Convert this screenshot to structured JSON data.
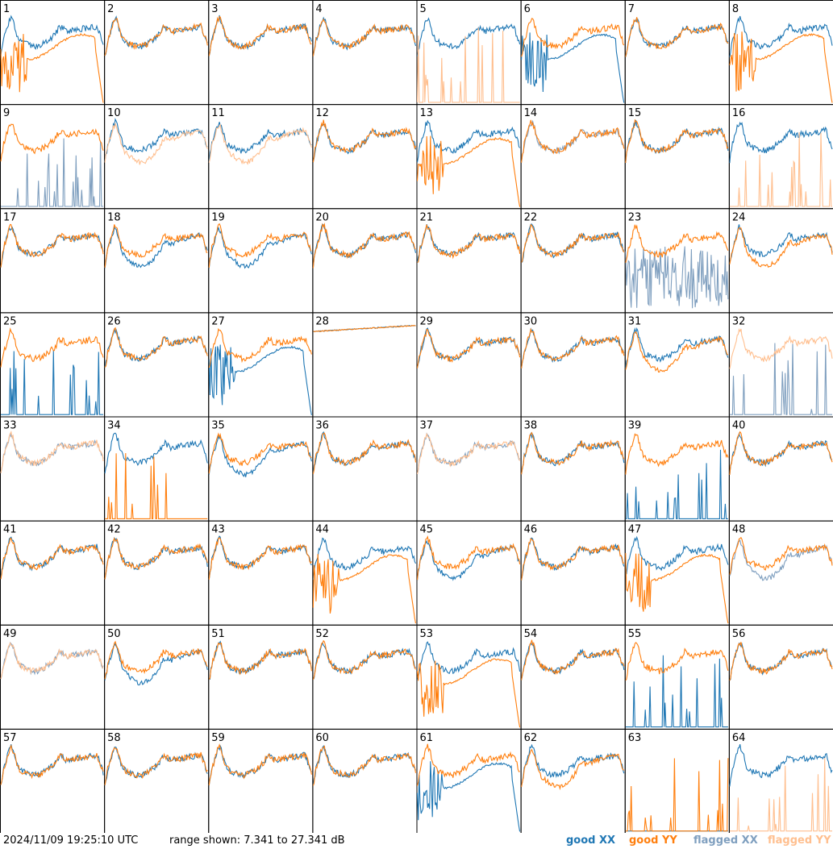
{
  "footer": {
    "timestamp": "2024/11/09 19:25:10 UTC",
    "range_text": "range shown: 7.341 to 27.341 dB",
    "legend": {
      "good_xx": "good XX",
      "good_yy": "good YY",
      "flagged_xx": "flagged XX",
      "flagged_yy": "flagged YY"
    }
  },
  "colors": {
    "good_xx": "#1f77b4",
    "good_yy": "#ff7f0e",
    "flagged_xx": "#7f9fbf",
    "flagged_yy": "#ffbf8f",
    "border": "#000000",
    "background": "#ffffff"
  },
  "chart_data": {
    "type": "line",
    "layout": "8x8 small multiples",
    "ylim": [
      7.341,
      27.341
    ],
    "yunit": "dB",
    "series_types": [
      "good XX",
      "good YY",
      "flagged XX",
      "flagged YY"
    ],
    "panels": [
      {
        "label": "1",
        "xx": "good",
        "yy": "good",
        "xx_shape": "normal",
        "yy_shape": "drop"
      },
      {
        "label": "2",
        "xx": "good",
        "yy": "good",
        "xx_shape": "normal",
        "yy_shape": "normal"
      },
      {
        "label": "3",
        "xx": "good",
        "yy": "good",
        "xx_shape": "normal",
        "yy_shape": "normal"
      },
      {
        "label": "4",
        "xx": "good",
        "yy": "good",
        "xx_shape": "normal",
        "yy_shape": "normal"
      },
      {
        "label": "5",
        "xx": "good",
        "yy": "flagged",
        "xx_shape": "normal",
        "yy_shape": "spikes"
      },
      {
        "label": "6",
        "xx": "good",
        "yy": "good",
        "xx_shape": "drop",
        "yy_shape": "normal"
      },
      {
        "label": "7",
        "xx": "good",
        "yy": "good",
        "xx_shape": "normal",
        "yy_shape": "normal"
      },
      {
        "label": "8",
        "xx": "good",
        "yy": "good",
        "xx_shape": "normal",
        "yy_shape": "drop"
      },
      {
        "label": "9",
        "xx": "flagged",
        "yy": "good",
        "xx_shape": "spikes",
        "yy_shape": "normal"
      },
      {
        "label": "10",
        "xx": "good",
        "yy": "flagged",
        "xx_shape": "normal",
        "yy_shape": "low"
      },
      {
        "label": "11",
        "xx": "good",
        "yy": "flagged",
        "xx_shape": "normal",
        "yy_shape": "low"
      },
      {
        "label": "12",
        "xx": "good",
        "yy": "good",
        "xx_shape": "normal",
        "yy_shape": "normal"
      },
      {
        "label": "13",
        "xx": "good",
        "yy": "good",
        "xx_shape": "normal",
        "yy_shape": "drop"
      },
      {
        "label": "14",
        "xx": "flagged",
        "yy": "good",
        "xx_shape": "normal",
        "yy_shape": "normal"
      },
      {
        "label": "15",
        "xx": "good",
        "yy": "good",
        "xx_shape": "normal",
        "yy_shape": "normal"
      },
      {
        "label": "16",
        "xx": "good",
        "yy": "flagged",
        "xx_shape": "normal",
        "yy_shape": "spikes"
      },
      {
        "label": "17",
        "xx": "good",
        "yy": "good",
        "xx_shape": "normal",
        "yy_shape": "normal"
      },
      {
        "label": "18",
        "xx": "good",
        "yy": "good",
        "xx_shape": "low",
        "yy_shape": "normal"
      },
      {
        "label": "19",
        "xx": "good",
        "yy": "good",
        "xx_shape": "low",
        "yy_shape": "normal"
      },
      {
        "label": "20",
        "xx": "good",
        "yy": "good",
        "xx_shape": "normal",
        "yy_shape": "normal"
      },
      {
        "label": "21",
        "xx": "good",
        "yy": "good",
        "xx_shape": "normal",
        "yy_shape": "normal"
      },
      {
        "label": "22",
        "xx": "good",
        "yy": "good",
        "xx_shape": "normal",
        "yy_shape": "normal"
      },
      {
        "label": "23",
        "xx": "flagged",
        "yy": "good",
        "xx_shape": "noise",
        "yy_shape": "normal"
      },
      {
        "label": "24",
        "xx": "good",
        "yy": "good",
        "xx_shape": "normal",
        "yy_shape": "low"
      },
      {
        "label": "25",
        "xx": "good",
        "yy": "good",
        "xx_shape": "spikes",
        "yy_shape": "normal"
      },
      {
        "label": "26",
        "xx": "good",
        "yy": "good",
        "xx_shape": "normal",
        "yy_shape": "normal"
      },
      {
        "label": "27",
        "xx": "good",
        "yy": "good",
        "xx_shape": "drop",
        "yy_shape": "normal"
      },
      {
        "label": "28",
        "xx": "good",
        "yy": "good",
        "xx_shape": "flat",
        "yy_shape": "flat"
      },
      {
        "label": "29",
        "xx": "good",
        "yy": "good",
        "xx_shape": "normal",
        "yy_shape": "normal"
      },
      {
        "label": "30",
        "xx": "good",
        "yy": "good",
        "xx_shape": "normal",
        "yy_shape": "normal"
      },
      {
        "label": "31",
        "xx": "good",
        "yy": "good",
        "xx_shape": "normal",
        "yy_shape": "low"
      },
      {
        "label": "32",
        "xx": "flagged",
        "yy": "flagged",
        "xx_shape": "spikes",
        "yy_shape": "normal"
      },
      {
        "label": "33",
        "xx": "flagged",
        "yy": "flagged",
        "xx_shape": "normal",
        "yy_shape": "normal"
      },
      {
        "label": "34",
        "xx": "good",
        "yy": "good",
        "xx_shape": "normal",
        "yy_shape": "spikes"
      },
      {
        "label": "35",
        "xx": "good",
        "yy": "good",
        "xx_shape": "low",
        "yy_shape": "normal"
      },
      {
        "label": "36",
        "xx": "good",
        "yy": "good",
        "xx_shape": "normal",
        "yy_shape": "normal"
      },
      {
        "label": "37",
        "xx": "flagged",
        "yy": "flagged",
        "xx_shape": "normal",
        "yy_shape": "normal"
      },
      {
        "label": "38",
        "xx": "good",
        "yy": "good",
        "xx_shape": "normal",
        "yy_shape": "normal"
      },
      {
        "label": "39",
        "xx": "good",
        "yy": "good",
        "xx_shape": "spikes",
        "yy_shape": "normal"
      },
      {
        "label": "40",
        "xx": "good",
        "yy": "good",
        "xx_shape": "normal",
        "yy_shape": "normal"
      },
      {
        "label": "41",
        "xx": "good",
        "yy": "good",
        "xx_shape": "normal",
        "yy_shape": "normal"
      },
      {
        "label": "42",
        "xx": "good",
        "yy": "good",
        "xx_shape": "normal",
        "yy_shape": "normal"
      },
      {
        "label": "43",
        "xx": "good",
        "yy": "good",
        "xx_shape": "normal",
        "yy_shape": "normal"
      },
      {
        "label": "44",
        "xx": "good",
        "yy": "good",
        "xx_shape": "normal",
        "yy_shape": "drop"
      },
      {
        "label": "45",
        "xx": "good",
        "yy": "good",
        "xx_shape": "low",
        "yy_shape": "normal"
      },
      {
        "label": "46",
        "xx": "good",
        "yy": "good",
        "xx_shape": "normal",
        "yy_shape": "normal"
      },
      {
        "label": "47",
        "xx": "good",
        "yy": "good",
        "xx_shape": "normal",
        "yy_shape": "drop"
      },
      {
        "label": "48",
        "xx": "flagged",
        "yy": "good",
        "xx_shape": "low",
        "yy_shape": "normal"
      },
      {
        "label": "49",
        "xx": "flagged",
        "yy": "flagged",
        "xx_shape": "normal",
        "yy_shape": "normal"
      },
      {
        "label": "50",
        "xx": "good",
        "yy": "good",
        "xx_shape": "low",
        "yy_shape": "normal"
      },
      {
        "label": "51",
        "xx": "good",
        "yy": "good",
        "xx_shape": "normal",
        "yy_shape": "normal"
      },
      {
        "label": "52",
        "xx": "good",
        "yy": "good",
        "xx_shape": "normal",
        "yy_shape": "normal"
      },
      {
        "label": "53",
        "xx": "good",
        "yy": "good",
        "xx_shape": "normal",
        "yy_shape": "drop"
      },
      {
        "label": "54",
        "xx": "good",
        "yy": "good",
        "xx_shape": "normal",
        "yy_shape": "normal"
      },
      {
        "label": "55",
        "xx": "good",
        "yy": "good",
        "xx_shape": "spikes",
        "yy_shape": "normal"
      },
      {
        "label": "56",
        "xx": "good",
        "yy": "good",
        "xx_shape": "normal",
        "yy_shape": "normal"
      },
      {
        "label": "57",
        "xx": "good",
        "yy": "good",
        "xx_shape": "normal",
        "yy_shape": "normal"
      },
      {
        "label": "58",
        "xx": "good",
        "yy": "good",
        "xx_shape": "normal",
        "yy_shape": "normal"
      },
      {
        "label": "59",
        "xx": "good",
        "yy": "good",
        "xx_shape": "normal",
        "yy_shape": "normal"
      },
      {
        "label": "60",
        "xx": "good",
        "yy": "good",
        "xx_shape": "normal",
        "yy_shape": "normal"
      },
      {
        "label": "61",
        "xx": "good",
        "yy": "good",
        "xx_shape": "drop",
        "yy_shape": "normal"
      },
      {
        "label": "62",
        "xx": "good",
        "yy": "good",
        "xx_shape": "normal",
        "yy_shape": "low"
      },
      {
        "label": "63",
        "xx": "good",
        "yy": "good",
        "xx_shape": "none",
        "yy_shape": "spikes"
      },
      {
        "label": "64",
        "xx": "good",
        "yy": "flagged",
        "xx_shape": "normal",
        "yy_shape": "spikes"
      }
    ]
  }
}
